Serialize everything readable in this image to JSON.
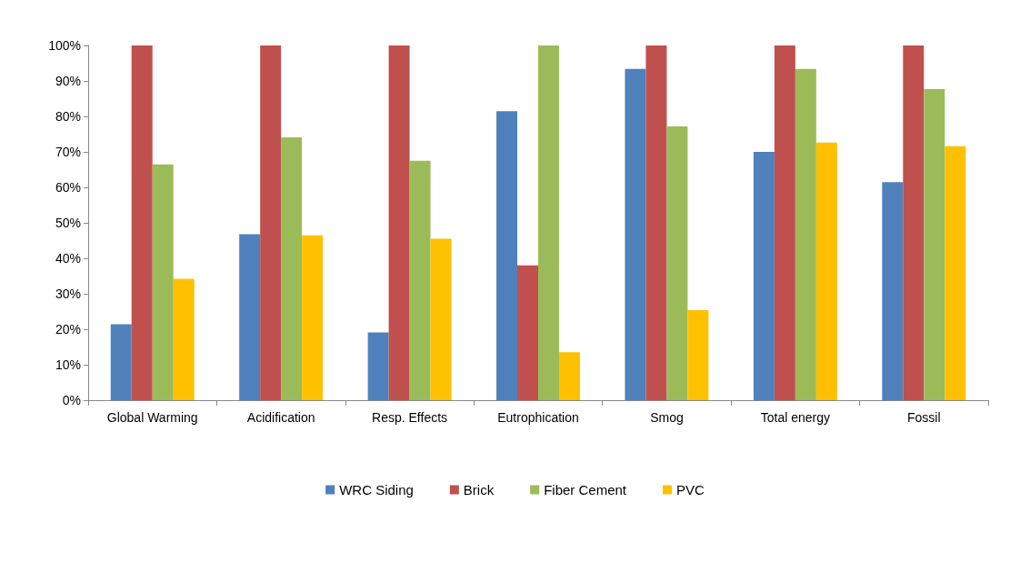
{
  "chart_data": {
    "type": "bar",
    "categories": [
      "Global Warming",
      "Acidification",
      "Resp. Effects",
      "Eutrophication",
      "Smog",
      "Total energy",
      "Fossil"
    ],
    "series": [
      {
        "name": "WRC Siding",
        "color": "#4f81bd",
        "values": [
          21.4,
          46.8,
          19.1,
          81.5,
          93.4,
          70.0,
          61.5
        ]
      },
      {
        "name": "Brick",
        "color": "#c0504d",
        "values": [
          100,
          100,
          100,
          38.0,
          100,
          100,
          100
        ]
      },
      {
        "name": "Fiber Cement",
        "color": "#9bbb59",
        "values": [
          66.5,
          74.1,
          67.5,
          100,
          77.2,
          93.4,
          87.7
        ]
      },
      {
        "name": "PVC",
        "color": "#ffc000",
        "values": [
          34.2,
          46.5,
          45.5,
          13.5,
          25.4,
          72.6,
          71.6
        ]
      }
    ],
    "ylim": [
      0,
      100
    ],
    "yticks": [
      {
        "value": 0,
        "label": "0%"
      },
      {
        "value": 10,
        "label": "10%"
      },
      {
        "value": 20,
        "label": "20%"
      },
      {
        "value": 30,
        "label": "30%"
      },
      {
        "value": 40,
        "label": "40%"
      },
      {
        "value": 50,
        "label": "50%"
      },
      {
        "value": 60,
        "label": "60%"
      },
      {
        "value": 70,
        "label": "70%"
      },
      {
        "value": 80,
        "label": "80%"
      },
      {
        "value": 90,
        "label": "90%"
      },
      {
        "value": 100,
        "label": "100%"
      }
    ],
    "grid": false,
    "legend": "bottom"
  }
}
